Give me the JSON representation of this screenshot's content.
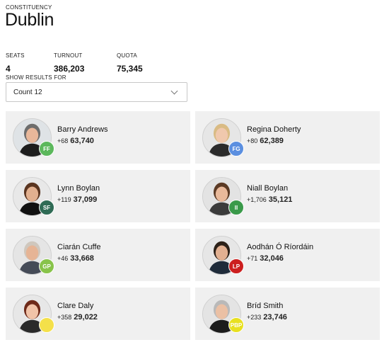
{
  "header": {
    "constituency_label": "CONSTITUENCY",
    "constituency_name": "Dublin"
  },
  "stats": {
    "seats_label": "SEATS",
    "seats_value": "4",
    "turnout_label": "TURNOUT",
    "turnout_value": "386,203",
    "quota_label": "QUOTA",
    "quota_value": "75,345"
  },
  "results_for": {
    "label": "SHOW RESULTS FOR",
    "selected": "Count 12"
  },
  "candidates": [
    {
      "name": "Barry Andrews",
      "party": "FF",
      "party_color": "#5cb85c",
      "change": "+68",
      "total": "63,740",
      "photo": "man-grey-icon"
    },
    {
      "name": "Regina Doherty",
      "party": "FG",
      "party_color": "#5b8fe0",
      "change": "+80",
      "total": "62,389",
      "photo": "woman-blonde-icon"
    },
    {
      "name": "Lynn Boylan",
      "party": "SF",
      "party_color": "#2f6b55",
      "change": "+119",
      "total": "37,099",
      "photo": "woman-curly-icon"
    },
    {
      "name": "Niall Boylan",
      "party": "II",
      "party_color": "#3a9a4a",
      "change": "+1,706",
      "total": "35,121",
      "photo": "man-brown-icon"
    },
    {
      "name": "Ciarán Cuffe",
      "party": "GP",
      "party_color": "#88c34a",
      "change": "+46",
      "total": "33,668",
      "photo": "man-bald-icon"
    },
    {
      "name": "Aodhán Ó Ríordáin",
      "party": "LP",
      "party_color": "#cc1f1f",
      "change": "+71",
      "total": "32,046",
      "photo": "man-suit-icon"
    },
    {
      "name": "Clare Daly",
      "party": "",
      "party_color": "#f4e04a",
      "change": "+358",
      "total": "29,022",
      "photo": "woman-red-hair-icon"
    },
    {
      "name": "Bríd Smith",
      "party": "PBP",
      "party_color": "#e8e020",
      "change": "+233",
      "total": "23,746",
      "photo": "woman-grey-icon"
    }
  ]
}
